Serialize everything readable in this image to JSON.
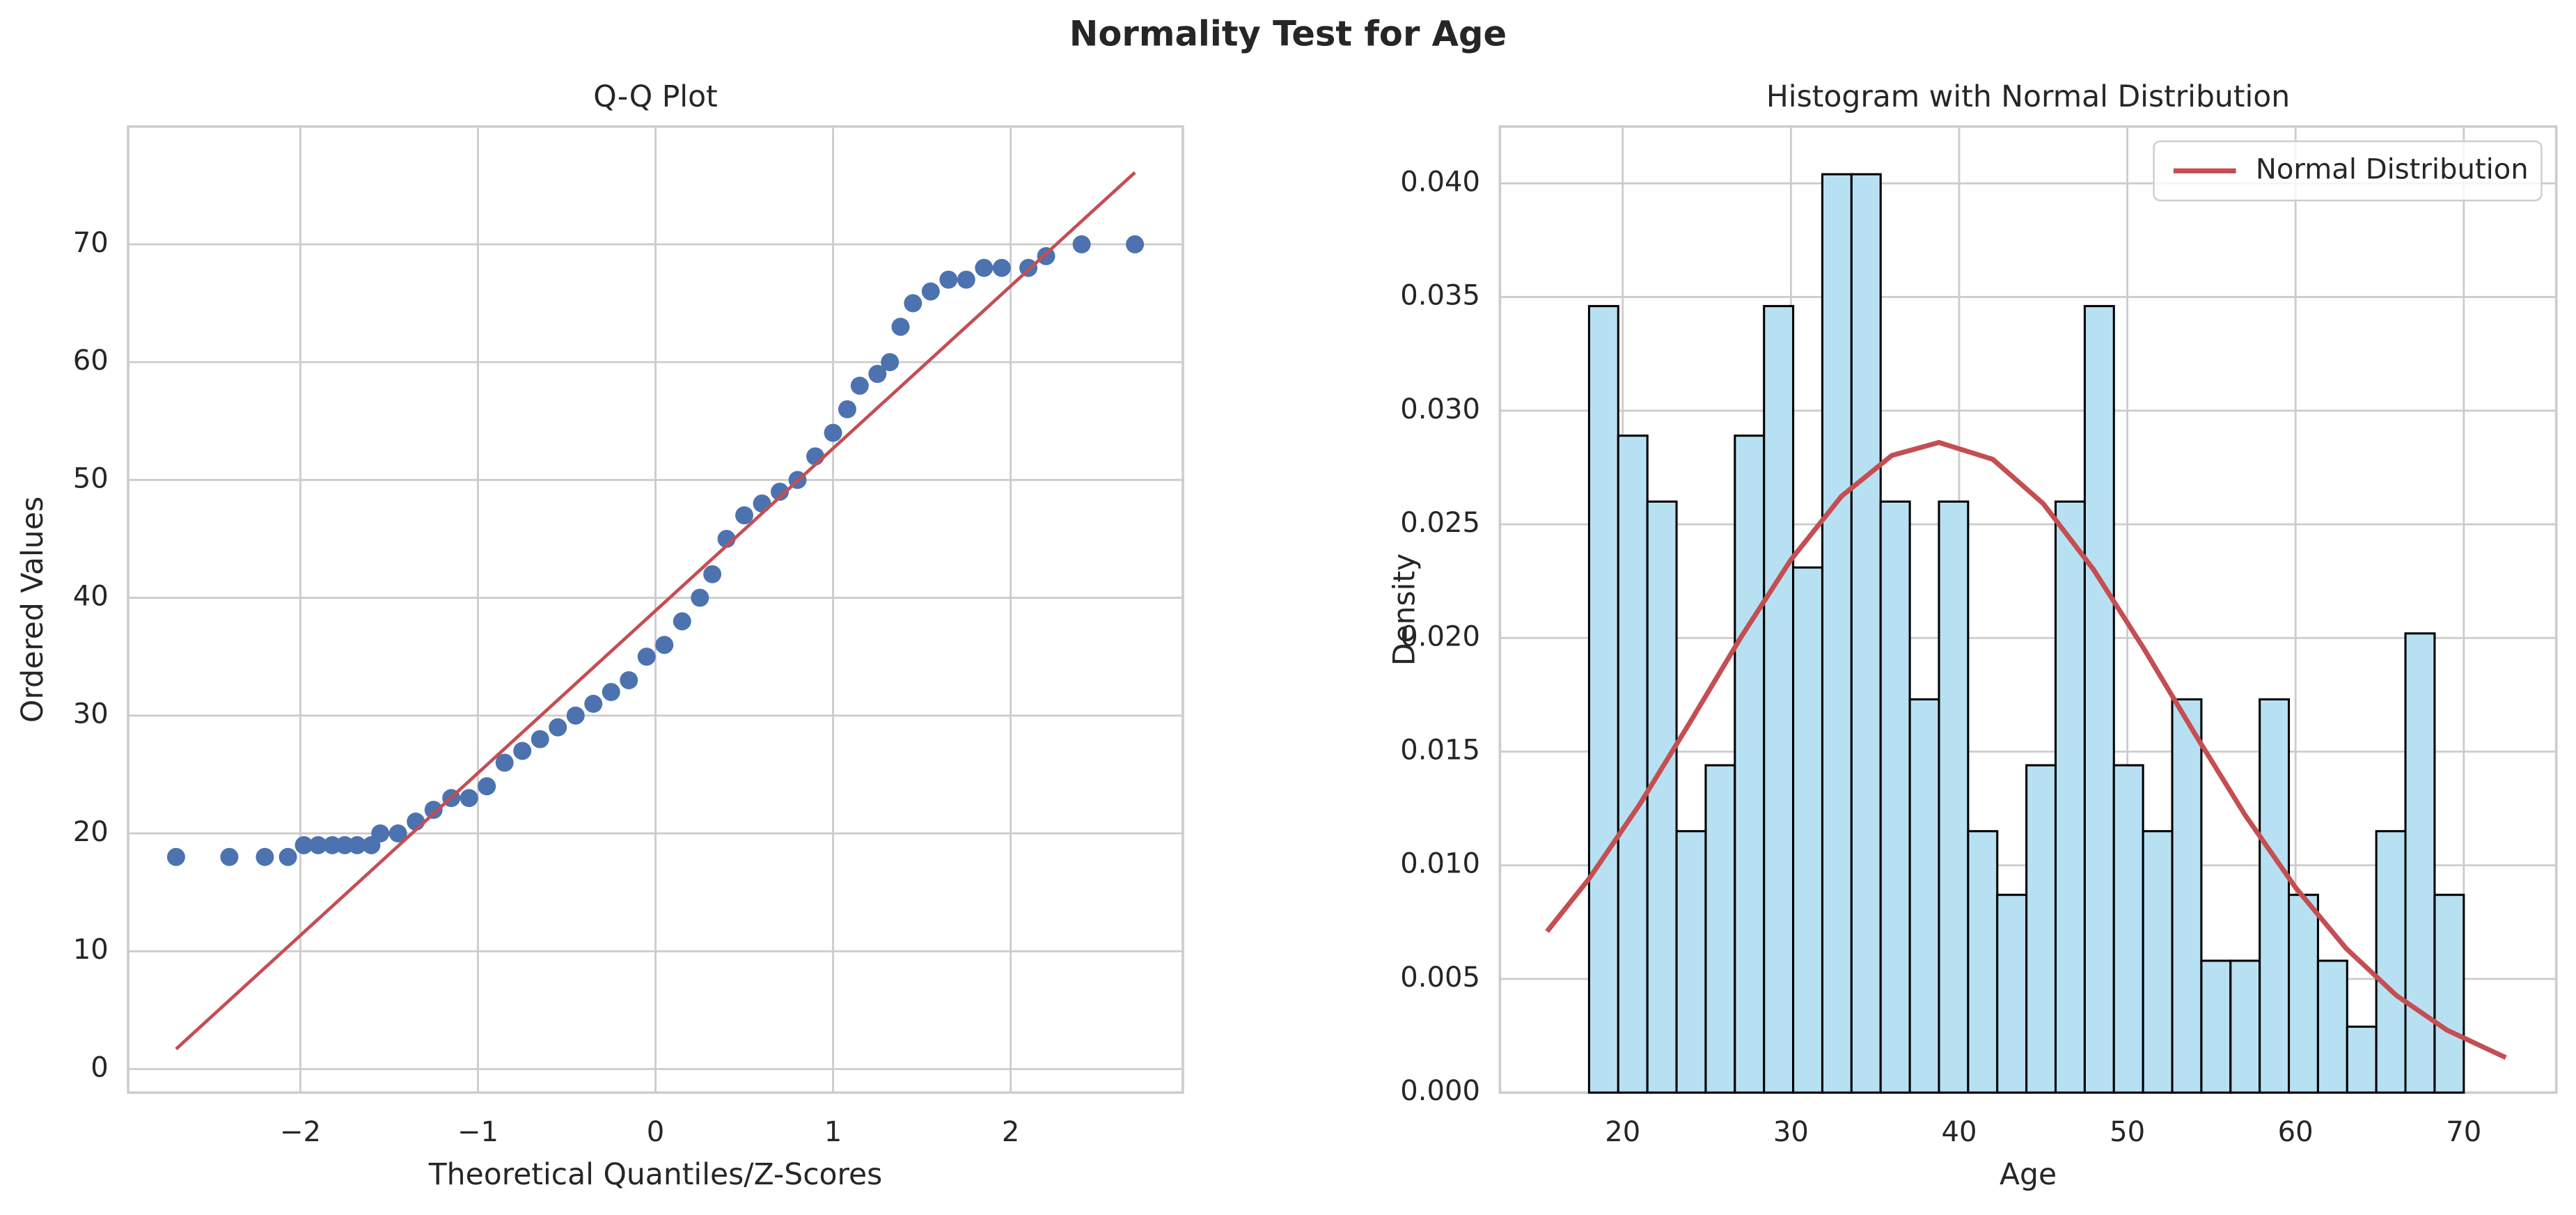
{
  "title": "Normality Test for Age",
  "chart_data": [
    {
      "type": "scatter",
      "title": "Q-Q Plot",
      "x_label": "Theoretical Quantiles/Z-Scores",
      "y_label": "Ordered Values",
      "xlim": [
        -2.97,
        2.97
      ],
      "ylim": [
        -2,
        80
      ],
      "xticks": [
        {
          "value": -2,
          "label": "−2"
        },
        {
          "value": -1,
          "label": "−1"
        },
        0,
        1,
        2
      ],
      "yticks": [
        0,
        10,
        20,
        30,
        40,
        50,
        60,
        70
      ],
      "grid": true,
      "series": [
        {
          "type": "scatter",
          "color": "#4c72b0",
          "x": [
            -2.7,
            -2.4,
            -2.2,
            -2.07,
            -1.98,
            -1.9,
            -1.82,
            -1.75,
            -1.68,
            -1.6,
            -1.55,
            -1.45,
            -1.35,
            -1.25,
            -1.15,
            -1.05,
            -0.95,
            -0.85,
            -0.75,
            -0.65,
            -0.55,
            -0.45,
            -0.35,
            -0.25,
            -0.15,
            -0.05,
            0.05,
            0.15,
            0.25,
            0.32,
            0.4,
            0.5,
            0.6,
            0.7,
            0.8,
            0.9,
            1.0,
            1.08,
            1.15,
            1.25,
            1.32,
            1.38,
            1.45,
            1.55,
            1.65,
            1.75,
            1.85,
            1.95,
            2.1,
            2.2,
            2.4,
            2.7
          ],
          "y": [
            18,
            18,
            18,
            18,
            19,
            19,
            19,
            19,
            19,
            19,
            20,
            20,
            21,
            22,
            23,
            23,
            24,
            26,
            27,
            28,
            29,
            30,
            31,
            32,
            33,
            35,
            36,
            38,
            40,
            42,
            45,
            47,
            48,
            49,
            50,
            52,
            54,
            56,
            58,
            59,
            60,
            63,
            65,
            66,
            67,
            67,
            68,
            68,
            68,
            69,
            70,
            70
          ]
        },
        {
          "type": "line",
          "color": "#c44e52",
          "x": [
            -2.7,
            2.7
          ],
          "y": [
            1.7,
            76.1
          ]
        }
      ]
    },
    {
      "type": "histogram",
      "title": "Histogram with Normal Distribution",
      "x_label": "Age",
      "y_label": "Density",
      "xlim": [
        12.7,
        75.5
      ],
      "ylim": [
        0,
        0.0425
      ],
      "xticks": [
        20,
        30,
        40,
        50,
        60,
        70
      ],
      "yticks": [
        {
          "value": 0,
          "label": "0.000"
        },
        {
          "value": 0.005,
          "label": "0.005"
        },
        {
          "value": 0.01,
          "label": "0.010"
        },
        {
          "value": 0.015,
          "label": "0.015"
        },
        {
          "value": 0.02,
          "label": "0.020"
        },
        {
          "value": 0.025,
          "label": "0.025"
        },
        {
          "value": 0.03,
          "label": "0.030"
        },
        {
          "value": 0.035,
          "label": "0.035"
        },
        {
          "value": 0.04,
          "label": "0.040"
        }
      ],
      "grid": true,
      "color": "#b7e1f3",
      "edgecolor": "#000000",
      "legend": "upper right",
      "bins": [
        18,
        19.733,
        21.467,
        23.2,
        24.933,
        26.667,
        28.4,
        30.133,
        31.867,
        33.6,
        35.333,
        37.067,
        38.8,
        40.533,
        42.267,
        44,
        45.733,
        47.467,
        49.2,
        50.933,
        52.667,
        54.4,
        56.133,
        57.867,
        59.6,
        61.333,
        63.067,
        64.8,
        66.533,
        68.267,
        70
      ],
      "values": [
        0.0346,
        0.0289,
        0.026,
        0.0115,
        0.0144,
        0.0289,
        0.0346,
        0.0231,
        0.0404,
        0.0404,
        0.026,
        0.0173,
        0.026,
        0.0115,
        0.0087,
        0.0144,
        0.026,
        0.0346,
        0.0144,
        0.0115,
        0.0173,
        0.0058,
        0.0058,
        0.0173,
        0.0087,
        0.0058,
        0.0029,
        0.0115,
        0.0202,
        0.0087
      ],
      "series": [
        {
          "name": "Normal Distribution",
          "type": "line",
          "color": "#c44e52",
          "x": [
            15.5,
            18,
            21,
            24,
            27,
            30,
            33,
            36,
            38.8,
            42,
            45,
            48,
            51,
            54,
            57,
            60,
            63,
            66,
            69,
            72.5
          ],
          "y": [
            0.00709,
            0.00941,
            0.01267,
            0.01629,
            0.02,
            0.02344,
            0.02623,
            0.02803,
            0.0286,
            0.02786,
            0.02591,
            0.023,
            0.01951,
            0.0158,
            0.01221,
            0.00902,
            0.00635,
            0.00427,
            0.00275,
            0.00154
          ]
        }
      ]
    }
  ]
}
